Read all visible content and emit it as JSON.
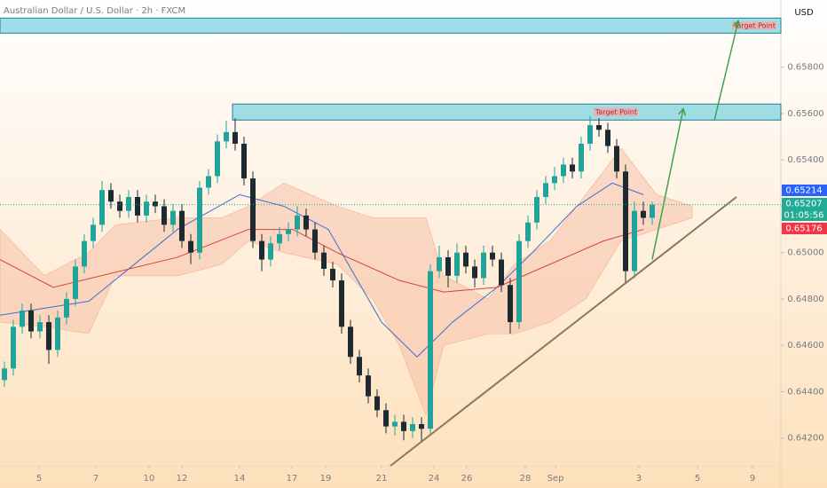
{
  "chart_data": {
    "type": "candlestick",
    "title": "Australian Dollar / U.S. Dollar · 2h · FXCM",
    "currency": "USD",
    "up_color": "#22a39a",
    "down_color": "#1f2a30",
    "open": [
      0.6445,
      0.645,
      0.6468,
      0.6475,
      0.6466,
      0.647,
      0.6458,
      0.6472,
      0.648,
      0.6494,
      0.6505,
      0.6512,
      0.6527,
      0.6522,
      0.6518,
      0.6524,
      0.6516,
      0.6522,
      0.652,
      0.6512,
      0.6518,
      0.6505,
      0.65,
      0.6528,
      0.6533,
      0.6548,
      0.6552,
      0.6547,
      0.6532,
      0.6505,
      0.6497,
      0.6504,
      0.6508,
      0.651,
      0.6516,
      0.651,
      0.65,
      0.6493,
      0.6488,
      0.6468,
      0.6455,
      0.6447,
      0.6438,
      0.6432,
      0.6425,
      0.6427,
      0.6423,
      0.6426,
      0.6424,
      0.6492,
      0.6498,
      0.649,
      0.65,
      0.6494,
      0.6489,
      0.65,
      0.6497,
      0.6486,
      0.647,
      0.6505,
      0.6513,
      0.6524,
      0.653,
      0.6533,
      0.6538,
      0.6535,
      0.6547,
      0.6555,
      0.6553,
      0.6546,
      0.6535,
      0.6492,
      0.6518,
      0.6515
    ],
    "high": [
      0.6453,
      0.6471,
      0.6478,
      0.6478,
      0.6473,
      0.6473,
      0.6475,
      0.6483,
      0.6497,
      0.6508,
      0.6515,
      0.6531,
      0.653,
      0.6525,
      0.6527,
      0.6527,
      0.6525,
      0.6525,
      0.6523,
      0.6521,
      0.6521,
      0.6508,
      0.6531,
      0.6536,
      0.6551,
      0.6557,
      0.6558,
      0.655,
      0.6535,
      0.6508,
      0.6507,
      0.6511,
      0.6513,
      0.652,
      0.6519,
      0.6513,
      0.6503,
      0.6496,
      0.6491,
      0.6471,
      0.6458,
      0.645,
      0.6441,
      0.6435,
      0.643,
      0.643,
      0.6429,
      0.6429,
      0.6495,
      0.6503,
      0.6501,
      0.6504,
      0.6503,
      0.6497,
      0.6503,
      0.6503,
      0.65,
      0.6489,
      0.6508,
      0.6516,
      0.6527,
      0.6533,
      0.6537,
      0.6541,
      0.6541,
      0.655,
      0.6559,
      0.6558,
      0.6556,
      0.6549,
      0.6538,
      0.6522,
      0.6522,
      0.6522
    ],
    "low": [
      0.6442,
      0.6447,
      0.6465,
      0.6463,
      0.6463,
      0.6452,
      0.6455,
      0.6469,
      0.6477,
      0.6491,
      0.6502,
      0.6509,
      0.6519,
      0.6515,
      0.6515,
      0.6513,
      0.6513,
      0.6517,
      0.6509,
      0.6509,
      0.6502,
      0.6495,
      0.6497,
      0.6525,
      0.653,
      0.6545,
      0.6544,
      0.6529,
      0.6502,
      0.6492,
      0.6494,
      0.6501,
      0.6505,
      0.6507,
      0.6507,
      0.6497,
      0.649,
      0.6485,
      0.6465,
      0.6452,
      0.6444,
      0.6435,
      0.6429,
      0.6422,
      0.6421,
      0.6419,
      0.642,
      0.6418,
      0.6421,
      0.6489,
      0.6485,
      0.6487,
      0.6491,
      0.6485,
      0.6486,
      0.6494,
      0.6483,
      0.6465,
      0.6467,
      0.6502,
      0.651,
      0.6521,
      0.6527,
      0.653,
      0.6532,
      0.6532,
      0.6544,
      0.655,
      0.6543,
      0.6532,
      0.6487,
      0.6489,
      0.6512,
      0.6512
    ],
    "close": [
      0.645,
      0.6468,
      0.6475,
      0.6466,
      0.647,
      0.6458,
      0.6472,
      0.648,
      0.6494,
      0.6505,
      0.6512,
      0.6527,
      0.6522,
      0.6518,
      0.6524,
      0.6516,
      0.6522,
      0.652,
      0.6512,
      0.6518,
      0.6505,
      0.65,
      0.6528,
      0.6533,
      0.6548,
      0.6552,
      0.6547,
      0.6532,
      0.6505,
      0.6497,
      0.6504,
      0.6508,
      0.651,
      0.6516,
      0.651,
      0.65,
      0.6493,
      0.6488,
      0.6468,
      0.6455,
      0.6447,
      0.6438,
      0.6432,
      0.6425,
      0.6427,
      0.6423,
      0.6426,
      0.6424,
      0.6492,
      0.6498,
      0.649,
      0.65,
      0.6494,
      0.6489,
      0.65,
      0.6497,
      0.6486,
      0.647,
      0.6505,
      0.6513,
      0.6524,
      0.653,
      0.6533,
      0.6538,
      0.6535,
      0.6547,
      0.6555,
      0.6553,
      0.6546,
      0.6535,
      0.6492,
      0.6518,
      0.6515,
      0.65207
    ],
    "cloud": {
      "color": "#f7b9a0",
      "x": [
        0,
        5,
        10,
        13,
        20,
        25,
        28,
        32,
        38,
        42,
        45,
        48,
        50,
        55,
        58,
        62,
        66,
        70,
        74,
        78
      ],
      "upper": [
        0.651,
        0.649,
        0.65,
        0.6512,
        0.6515,
        0.6515,
        0.652,
        0.653,
        0.652,
        0.6515,
        0.6515,
        0.6515,
        0.649,
        0.648,
        0.6495,
        0.6505,
        0.6525,
        0.6545,
        0.6525,
        0.652
      ],
      "lower": [
        0.647,
        0.6468,
        0.6465,
        0.649,
        0.649,
        0.6495,
        0.6505,
        0.65,
        0.6495,
        0.648,
        0.646,
        0.643,
        0.646,
        0.6465,
        0.6465,
        0.647,
        0.648,
        0.6505,
        0.651,
        0.6515
      ]
    },
    "series": [
      {
        "color": "#3b6fd4",
        "x": [
          0,
          10,
          20,
          27,
          32,
          37,
          43,
          47,
          51,
          56,
          60,
          65,
          69,
          72.5
        ],
        "values": [
          0.6473,
          0.6479,
          0.651,
          0.6525,
          0.652,
          0.651,
          0.647,
          0.6455,
          0.647,
          0.6485,
          0.65,
          0.652,
          0.653,
          0.6525
        ]
      },
      {
        "color": "#d9413a",
        "x": [
          0,
          6,
          20,
          28,
          33,
          38,
          45,
          50,
          56,
          62,
          68,
          72.5
        ],
        "values": [
          0.6497,
          0.6485,
          0.6498,
          0.651,
          0.651,
          0.65,
          0.6488,
          0.6483,
          0.6485,
          0.6495,
          0.6505,
          0.651
        ]
      }
    ],
    "zones": [
      {
        "label": "Target Point",
        "x0": 0,
        "x1": 88,
        "top": 0.66012,
        "bottom": 0.65947
      },
      {
        "label": "Target Point",
        "x0": 26.2,
        "x1": 88,
        "top": 0.65641,
        "bottom": 0.65572
      }
    ],
    "trendline": {
      "color": "#8a7a5a",
      "x": [
        44,
        83
      ],
      "values": [
        0.6408,
        0.6524
      ]
    },
    "arrows": [
      {
        "color": "#3fa34d",
        "x": [
          73.5,
          77
        ],
        "values": [
          0.6497,
          0.6562
        ]
      },
      {
        "color": "#3fa34d",
        "x": [
          80.5,
          83.2
        ],
        "values": [
          0.6557,
          0.66
        ]
      }
    ],
    "last_price": 0.65207,
    "price_labels": [
      {
        "value": 0.65214,
        "color": "#2962ff"
      },
      {
        "value": 0.65207,
        "color": "#22ab94",
        "countdown": "01:05:56"
      },
      {
        "value": 0.65176,
        "color": "#f23645"
      }
    ],
    "xlim": [
      0,
      88
    ],
    "ylim": [
      0.6408,
      0.6609
    ],
    "xticks": [
      {
        "value": 4.4,
        "label": "5"
      },
      {
        "value": 10.8,
        "label": "7"
      },
      {
        "value": 16.8,
        "label": "10"
      },
      {
        "value": 20.5,
        "label": "12"
      },
      {
        "value": 27,
        "label": "14"
      },
      {
        "value": 32.9,
        "label": "17"
      },
      {
        "value": 36.7,
        "label": "19"
      },
      {
        "value": 43,
        "label": "21"
      },
      {
        "value": 48.9,
        "label": "24"
      },
      {
        "value": 52.6,
        "label": "26"
      },
      {
        "value": 59.2,
        "label": "28"
      },
      {
        "value": 62.6,
        "label": "Sep"
      },
      {
        "value": 72,
        "label": "3"
      },
      {
        "value": 78.6,
        "label": "5"
      },
      {
        "value": 84.8,
        "label": "9"
      }
    ],
    "yticks": [
      {
        "value": 0.642,
        "label": "0.64200"
      },
      {
        "value": 0.644,
        "label": "0.64400"
      },
      {
        "value": 0.646,
        "label": "0.64600"
      },
      {
        "value": 0.648,
        "label": "0.64800"
      },
      {
        "value": 0.65,
        "label": "0.65000"
      },
      {
        "value": 0.652,
        "label": "0.65200"
      },
      {
        "value": 0.654,
        "label": "0.65400"
      },
      {
        "value": 0.656,
        "label": "0.65600"
      },
      {
        "value": 0.658,
        "label": "0.65800"
      }
    ]
  }
}
